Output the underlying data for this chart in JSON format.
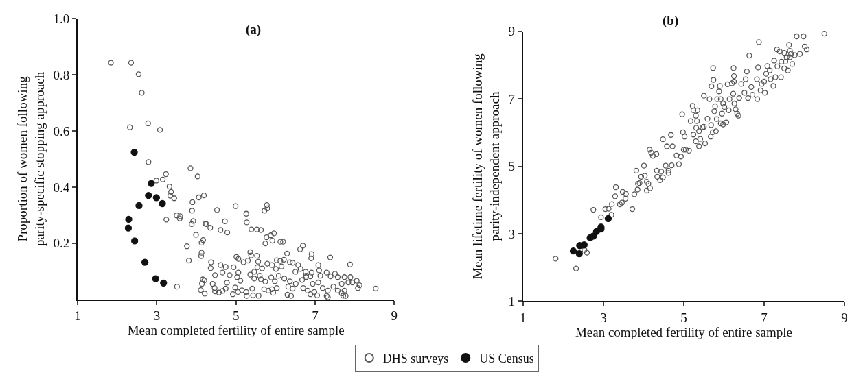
{
  "chart_data": [
    {
      "type": "scatter",
      "title": "(a)",
      "xlabel": "Mean completed fertility of entire sample",
      "ylabel": "Proportion of women following\nparity-specific stopping approach",
      "xlim": [
        1,
        9
      ],
      "ylim": [
        0,
        1
      ],
      "xticks": [
        1,
        3,
        5,
        7,
        9
      ],
      "yticks": [
        0.2,
        0.4,
        0.6,
        0.8,
        {
          "value": 1,
          "label": "1.0"
        }
      ],
      "legend": "bottom",
      "marker": "circle",
      "series": [
        {
          "name": "DHS surveys",
          "color": "#555555",
          "x": [
            1.84,
            2.35,
            2.54,
            2.62,
            2.32,
            2.78,
            3.08,
            2.79,
            3.85,
            4.03,
            3.23,
            2.99,
            3.15,
            3.32,
            3.36,
            3.34,
            3.44,
            4.06,
            4.19,
            3.9,
            3.89,
            3.24,
            3.5,
            3.59,
            3.58,
            3.92,
            3.88,
            4.23,
            4.25,
            4.35,
            4.52,
            4.99,
            4.72,
            4.61,
            4.78,
            5.26,
            5.27,
            5.39,
            5.53,
            5.63,
            5.78,
            5.79,
            5.72,
            5.77,
            5.74,
            5.88,
            5.96,
            5.92,
            6.12,
            6.19,
            3.99,
            4.17,
            4.13,
            3.76,
            4.13,
            4.12,
            3.81,
            4.37,
            4.36,
            4.61,
            4.74,
            4.66,
            4.47,
            4.16,
            4.2,
            4.14,
            4.11,
            4.21,
            3.51,
            4.41,
            4.46,
            4.47,
            4.57,
            4.66,
            4.74,
            4.77,
            4.84,
            4.94,
            5.01,
            5.06,
            5.19,
            5.3,
            5.36,
            5.38,
            5.53,
            5.56,
            5.79,
            5.54,
            5.66,
            5.46,
            5.36,
            5.06,
            5.03,
            5.11,
            4.98,
            4.92,
            5.05,
            5.15,
            5.26,
            5.27,
            5.41,
            5.43,
            5.57,
            5.63,
            5.74,
            5.71,
            5.82,
            5.91,
            5.94,
            6.03,
            5.98,
            5.89,
            6.03,
            6.12,
            6.21,
            6.29,
            6.43,
            6.57,
            6.62,
            6.69,
            6.91,
            6.9,
            7.08,
            7.38,
            7.88,
            6.63,
            6.76,
            6.91,
            7.1,
            7.13,
            7.29,
            7.39,
            7.5,
            7.57,
            7.74,
            7.89,
            8.05,
            8.12,
            8.08,
            8.53,
            6.08,
            6.22,
            6.36,
            6.32,
            6.43,
            6.3,
            6.39,
            6.51,
            6.67,
            6.77,
            6.7,
            6.81,
            6.88,
            6.98,
            7.05,
            6.94,
            7.08,
            7.19,
            7.32,
            7.29,
            7.32,
            7.46,
            7.57,
            7.67,
            7.74,
            7.71,
            7.77,
            7.84,
            7.94,
            7.67,
            6.88,
            6.77,
            6.5,
            6.36,
            5.6,
            5.46,
            6.01,
            6.15,
            5.91
          ],
          "values": [
            0.843,
            0.843,
            0.802,
            0.736,
            0.613,
            0.627,
            0.604,
            0.489,
            0.467,
            0.438,
            0.446,
            0.423,
            0.427,
            0.402,
            0.383,
            0.369,
            0.36,
            0.363,
            0.37,
            0.346,
            0.316,
            0.284,
            0.299,
            0.296,
            0.288,
            0.279,
            0.268,
            0.27,
            0.268,
            0.255,
            0.318,
            0.332,
            0.278,
            0.247,
            0.238,
            0.305,
            0.274,
            0.249,
            0.249,
            0.247,
            0.336,
            0.324,
            0.316,
            0.221,
            0.199,
            0.228,
            0.235,
            0.209,
            0.205,
            0.205,
            0.23,
            0.211,
            0.202,
            0.189,
            0.166,
            0.154,
            0.138,
            0.132,
            0.111,
            0.122,
            0.115,
            0.095,
            0.086,
            0.071,
            0.067,
            0.055,
            0.033,
            0.02,
            0.045,
            0.055,
            0.04,
            0.028,
            0.024,
            0.03,
            0.038,
            0.059,
            0.086,
            0.114,
            0.151,
            0.144,
            0.132,
            0.138,
            0.168,
            0.156,
            0.155,
            0.134,
            0.127,
            0.114,
            0.11,
            0.098,
            0.088,
            0.095,
            0.079,
            0.066,
            0.042,
            0.018,
            0.026,
            0.032,
            0.026,
            0.012,
            0.038,
            0.014,
            0.013,
            0.071,
            0.063,
            0.036,
            0.031,
            0.036,
            0.023,
            0.04,
            0.064,
            0.078,
            0.139,
            0.137,
            0.141,
            0.163,
            0.13,
            0.122,
            0.178,
            0.191,
            0.161,
            0.146,
            0.122,
            0.149,
            0.124,
            0.108,
            0.098,
            0.095,
            0.103,
            0.084,
            0.095,
            0.082,
            0.091,
            0.079,
            0.079,
            0.079,
            0.066,
            0.05,
            0.04,
            0.038,
            0.084,
            0.074,
            0.064,
            0.045,
            0.038,
            0.016,
            0.012,
            0.055,
            0.069,
            0.084,
            0.04,
            0.031,
            0.018,
            0.026,
            0.014,
            0.055,
            0.06,
            0.04,
            0.031,
            0.012,
            0.007,
            0.045,
            0.031,
            0.055,
            0.031,
            0.013,
            0.012,
            0.06,
            0.06,
            0.021,
            0.082,
            0.079,
            0.098,
            0.132,
            0.084,
            0.074,
            0.108,
            0.117,
            0.122
          ]
        },
        {
          "name": "US Census",
          "color": "#111111",
          "x": [
            2.43,
            2.86,
            2.79,
            2.99,
            3.14,
            2.55,
            2.29,
            2.28,
            2.44,
            2.7,
            2.97,
            3.17
          ],
          "values": [
            0.524,
            0.413,
            0.37,
            0.362,
            0.341,
            0.334,
            0.285,
            0.254,
            0.208,
            0.132,
            0.073,
            0.058
          ]
        }
      ]
    },
    {
      "type": "scatter",
      "title": "(b)",
      "xlabel": "Mean completed fertility of entire sample",
      "ylabel": "Mean lifetime fertility of women following\nparity-independent approach",
      "xlim": [
        1,
        9
      ],
      "ylim": [
        1,
        9
      ],
      "xticks": [
        1,
        3,
        5,
        7,
        9
      ],
      "yticks": [
        1,
        3,
        5,
        7,
        9
      ],
      "marker": "circle",
      "series": [
        {
          "color": "#555555",
          "x": [
            1.81,
            2.32,
            2.59,
            2.53,
            2.75,
            2.94,
            3.05,
            3.13,
            3.2,
            3.21,
            3.31,
            3.29,
            3.41,
            3.46,
            3.48,
            3.56,
            3.55,
            3.72,
            3.77,
            3.82,
            3.86,
            3.9,
            3.85,
            3.94,
            4.03,
            4.01,
            4.08,
            4.08,
            4.12,
            4.16,
            4.15,
            4.19,
            4.23,
            4.32,
            4.33,
            4.34,
            4.41,
            4.44,
            4.48,
            4.48,
            4.55,
            4.58,
            4.62,
            4.62,
            4.68,
            4.7,
            4.72,
            4.82,
            4.88,
            4.93,
            4.96,
            4.98,
            5.02,
            5.0,
            5.05,
            5.13,
            5.17,
            5.22,
            5.24,
            5.33,
            5.34,
            5.3,
            5.38,
            5.41,
            5.3,
            5.24,
            5.31,
            5.38,
            5.53,
            5.5,
            5.59,
            5.64,
            5.69,
            5.73,
            5.74,
            5.5,
            5.47,
            5.68,
            5.67,
            5.72,
            5.8,
            5.82,
            5.83,
            5.76,
            5.78,
            5.9,
            5.88,
            5.92,
            5.98,
            6.01,
            5.95,
            5.92,
            5.98,
            6.06,
            6.09,
            6.14,
            6.12,
            6.2,
            6.24,
            6.25,
            6.25,
            6.23,
            6.26,
            6.29,
            6.33,
            6.36,
            6.38,
            6.43,
            6.51,
            6.54,
            6.57,
            6.63,
            6.6,
            6.68,
            6.71,
            6.82,
            6.85,
            6.87,
            6.83,
            6.91,
            6.94,
            7.02,
            7.05,
            7.08,
            7.0,
            7.14,
            7.16,
            7.23,
            7.25,
            7.28,
            7.33,
            7.42,
            7.43,
            7.5,
            7.32,
            7.39,
            7.5,
            7.53,
            7.59,
            7.62,
            7.64,
            7.7,
            7.67,
            7.76,
            7.81,
            7.89,
            7.98,
            8.01,
            8.06,
            7.64,
            7.56,
            8.5
          ],
          "values": [
            2.26,
            1.97,
            2.44,
            2.52,
            3.71,
            3.49,
            3.73,
            3.74,
            3.56,
            3.88,
            4.38,
            4.11,
            3.87,
            3.92,
            4.24,
            4.18,
            4.04,
            3.73,
            4.17,
            4.87,
            4.48,
            4.5,
            4.31,
            4.69,
            4.72,
            5.02,
            4.54,
            4.28,
            4.48,
            4.35,
            5.49,
            5.4,
            5.31,
            5.36,
            4.87,
            4.69,
            4.59,
            4.84,
            4.67,
            5.8,
            5.02,
            5.59,
            4.87,
            4.8,
            5.93,
            5.03,
            5.59,
            5.32,
            5.06,
            5.29,
            6.54,
            6.01,
            5.88,
            5.49,
            5.49,
            5.46,
            6.34,
            6.79,
            6.66,
            6.34,
            6.66,
            6.5,
            5.59,
            5.81,
            5.74,
            5.94,
            6.14,
            6.04,
            5.68,
            7.09,
            6.41,
            6.99,
            7.37,
            7.91,
            7.56,
            6.17,
            6.15,
            6.22,
            5.88,
            6.01,
            6.04,
            6.4,
            6.99,
            6.63,
            6.78,
            7.38,
            7.22,
            6.99,
            6.86,
            6.76,
            6.56,
            6.27,
            6.24,
            6.3,
            7.43,
            6.99,
            6.66,
            7.46,
            7.91,
            7.67,
            7.51,
            7.15,
            6.86,
            6.69,
            6.56,
            6.5,
            7.02,
            7.44,
            7.18,
            7.58,
            7.81,
            8.28,
            7.02,
            7.35,
            7.12,
            7.58,
            7.93,
            8.68,
            6.99,
            7.25,
            7.44,
            7.18,
            7.74,
            7.97,
            7.51,
            7.84,
            7.58,
            7.38,
            8.13,
            7.64,
            7.96,
            7.64,
            8.1,
            7.9,
            8.46,
            8.4,
            8.36,
            8.1,
            7.84,
            8.6,
            8.42,
            8.03,
            8.33,
            8.29,
            8.85,
            8.33,
            8.85,
            8.55,
            8.46,
            8.23,
            8.23,
            8.93
          ]
        },
        {
          "color": "#111111",
          "x": [
            2.25,
            2.41,
            2.52,
            2.4,
            2.67,
            2.75,
            2.83,
            2.94,
            2.94,
            3.12
          ],
          "values": [
            2.49,
            2.65,
            2.67,
            2.41,
            2.88,
            2.93,
            3.07,
            3.2,
            3.14,
            3.45
          ]
        }
      ]
    }
  ]
}
